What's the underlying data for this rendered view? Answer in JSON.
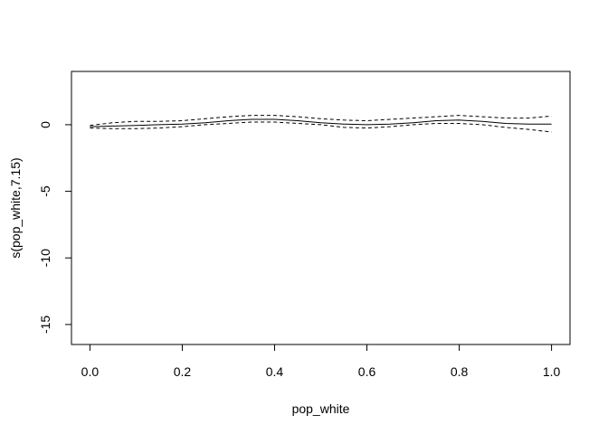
{
  "chart_data": {
    "type": "line",
    "title": "",
    "xlabel": "pop_white",
    "ylabel": "s(pop_white,7.15)",
    "xlim": [
      -0.04,
      1.04
    ],
    "ylim": [
      -16.5,
      4.0
    ],
    "x_ticks": [
      0.0,
      0.2,
      0.4,
      0.6,
      0.8,
      1.0
    ],
    "x_tick_labels": [
      "0.0",
      "0.2",
      "0.4",
      "0.6",
      "0.8",
      "1.0"
    ],
    "y_ticks": [
      0,
      -5,
      -10,
      -15
    ],
    "y_tick_labels": [
      "0",
      "-5",
      "-10",
      "-15"
    ],
    "grid": false,
    "legend": "none",
    "series": [
      {
        "style": "solid",
        "x": [
          0.0,
          0.05,
          0.1,
          0.15,
          0.2,
          0.25,
          0.3,
          0.35,
          0.4,
          0.45,
          0.5,
          0.55,
          0.6,
          0.65,
          0.7,
          0.75,
          0.8,
          0.85,
          0.9,
          0.95,
          1.0
        ],
        "y": [
          -0.15,
          -0.1,
          -0.05,
          0.0,
          0.05,
          0.15,
          0.3,
          0.4,
          0.4,
          0.3,
          0.15,
          0.05,
          0.0,
          0.05,
          0.15,
          0.3,
          0.35,
          0.25,
          0.1,
          0.05,
          0.05
        ]
      },
      {
        "style": "dashed",
        "x": [
          0.0,
          0.05,
          0.1,
          0.15,
          0.2,
          0.25,
          0.3,
          0.35,
          0.4,
          0.45,
          0.5,
          0.55,
          0.6,
          0.65,
          0.7,
          0.75,
          0.8,
          0.85,
          0.9,
          0.95,
          1.0
        ],
        "y": [
          -0.05,
          0.15,
          0.25,
          0.25,
          0.3,
          0.45,
          0.6,
          0.7,
          0.7,
          0.6,
          0.45,
          0.35,
          0.3,
          0.4,
          0.5,
          0.6,
          0.7,
          0.6,
          0.5,
          0.5,
          0.65
        ]
      },
      {
        "style": "dashed",
        "x": [
          0.0,
          0.05,
          0.1,
          0.15,
          0.2,
          0.25,
          0.3,
          0.35,
          0.4,
          0.45,
          0.5,
          0.55,
          0.6,
          0.65,
          0.7,
          0.75,
          0.8,
          0.85,
          0.9,
          0.95,
          1.0
        ],
        "y": [
          -0.25,
          -0.3,
          -0.3,
          -0.25,
          -0.15,
          0.0,
          0.1,
          0.2,
          0.2,
          0.1,
          0.0,
          -0.2,
          -0.25,
          -0.15,
          0.0,
          0.1,
          0.1,
          0.0,
          -0.2,
          -0.35,
          -0.55
        ]
      }
    ]
  }
}
